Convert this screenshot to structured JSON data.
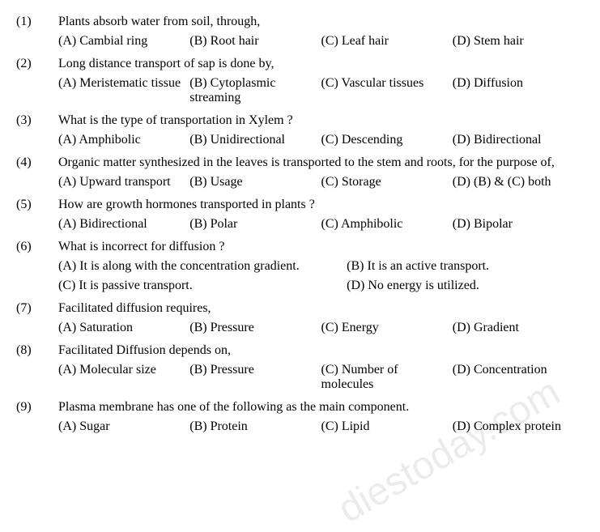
{
  "watermark": "diestoday.com",
  "questions": [
    {
      "num": "(1)",
      "text": "Plants absorb water from soil, through,",
      "options": {
        "a": "(A)  Cambial ring",
        "b": "(B)  Root hair",
        "c": "(C)  Leaf hair",
        "d": "(D)  Stem hair"
      }
    },
    {
      "num": "(2)",
      "text": "Long distance transport of sap is done by,",
      "options": {
        "a": "(A)  Meristematic tissue",
        "b": "(B)  Cytoplasmic streaming",
        "c": "(C)  Vascular tissues",
        "d": "(D)  Diffusion"
      }
    },
    {
      "num": "(3)",
      "text": "What is the type of transportation in Xylem ?",
      "options": {
        "a": "(A)  Amphibolic",
        "b": "(B)  Unidirectional",
        "c": "(C)  Descending",
        "d": "(D)  Bidirectional"
      }
    },
    {
      "num": "(4)",
      "text": "Organic matter synthesized in the leaves is transported to the stem and roots, for the purpose of,",
      "options": {
        "a": "(A)  Upward transport",
        "b": "(B)  Usage",
        "c": "(C)  Storage",
        "d": "(D)  (B) & (C) both"
      }
    },
    {
      "num": "(5)",
      "text": "How are growth hormones transported in plants ?",
      "options": {
        "a": "(A)  Bidirectional",
        "b": "(B)  Polar",
        "c": "(C)  Amphibolic",
        "d": "(D)  Bipolar"
      }
    },
    {
      "num": "(6)",
      "text": "What is incorrect for diffusion ?",
      "options_rows": [
        {
          "a": "(A)  It is along with the concentration gradient.",
          "b": "(B)  It is an active transport."
        },
        {
          "a": "(C)  It is passive transport.",
          "b": "(D)  No energy is utilized."
        }
      ]
    },
    {
      "num": "(7)",
      "text": "Facilitated diffusion requires,",
      "options": {
        "a": "(A)  Saturation",
        "b": "(B)  Pressure",
        "c": "(C)  Energy",
        "d": "(D)  Gradient"
      }
    },
    {
      "num": "(8)",
      "text": "Facilitated Diffusion depends on,",
      "options": {
        "a": "(A)  Molecular size",
        "b": "(B)  Pressure",
        "c": "(C)  Number of molecules",
        "d": "(D)  Concentration"
      }
    },
    {
      "num": "(9)",
      "text": "Plasma membrane has one of the following as the main component.",
      "options": {
        "a": "(A)  Sugar",
        "b": "(B)  Protein",
        "c": "(C)  Lipid",
        "d": "(D)  Complex protein"
      }
    }
  ]
}
